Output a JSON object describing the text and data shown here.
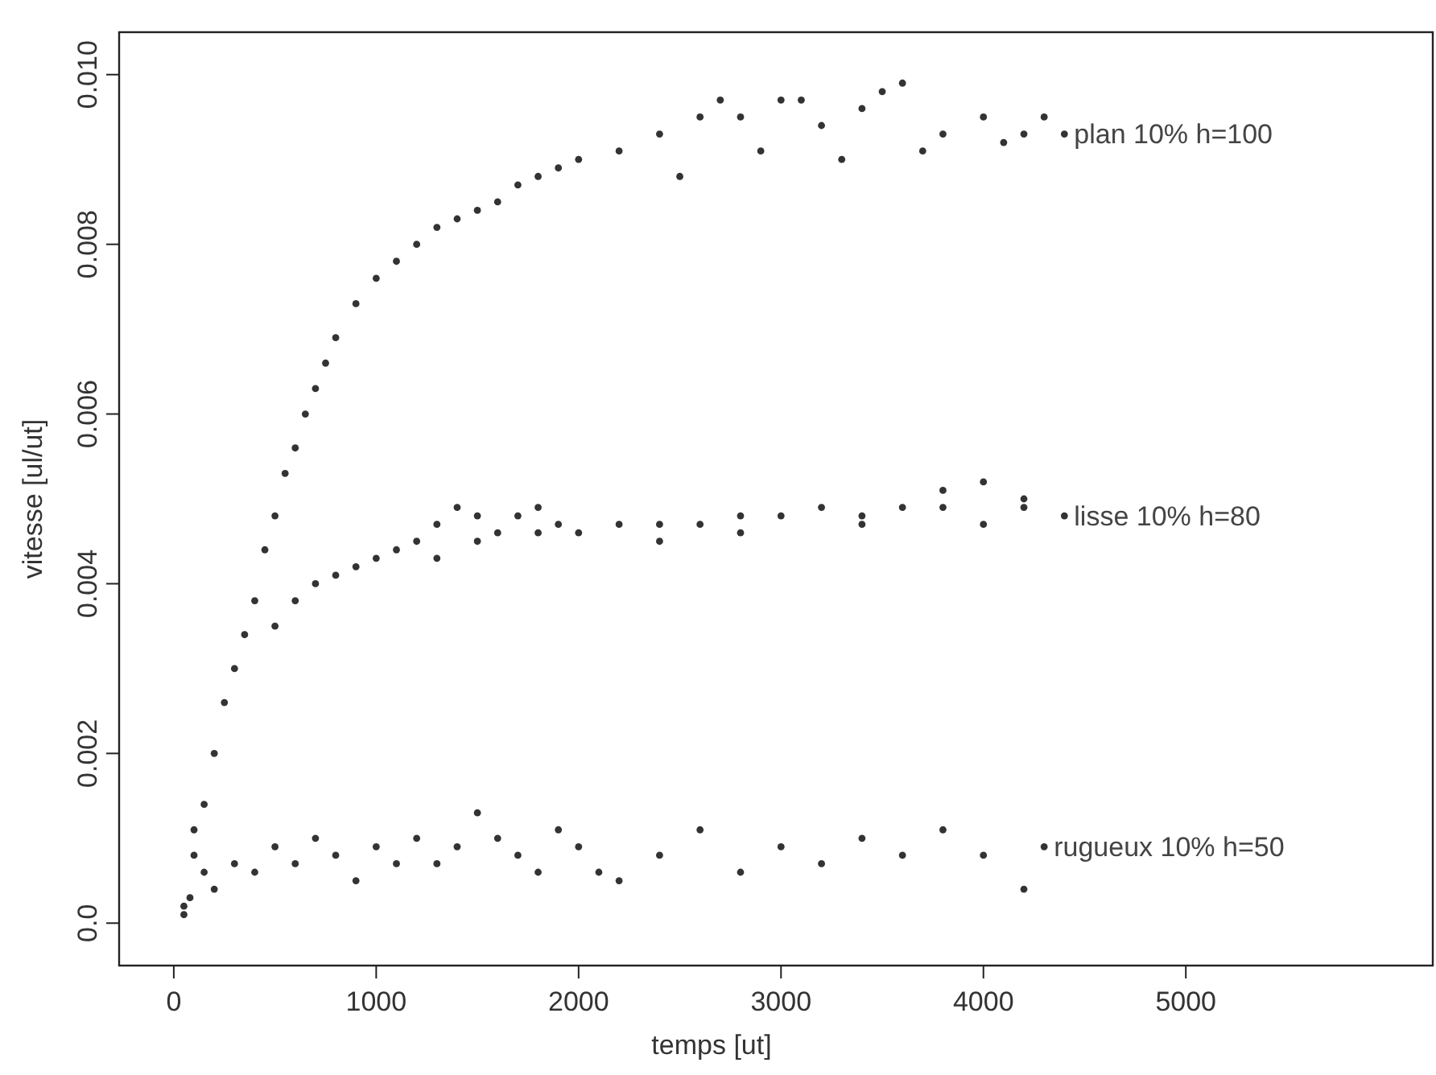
{
  "chart_data": {
    "type": "scatter",
    "xlabel": "temps [ut]",
    "ylabel": "vitesse [ul/ut]",
    "xlim": [
      -270,
      6220
    ],
    "xticks": [
      0,
      1000,
      2000,
      3000,
      4000,
      5000
    ],
    "ylim": [
      -0.0005,
      0.0105
    ],
    "yticks": [
      {
        "value": 0,
        "label": "0.0"
      },
      {
        "value": 0.002,
        "label": "0.002"
      },
      {
        "value": 0.004,
        "label": "0.004"
      },
      {
        "value": 0.006,
        "label": "0.006"
      },
      {
        "value": 0.008,
        "label": "0.008"
      },
      {
        "value": 0.01,
        "label": "0.010"
      }
    ],
    "grid": false,
    "legend": false,
    "marker": "circle",
    "series": [
      {
        "name": "plan 10% h=100",
        "color": "#333333",
        "x": [
          50,
          100,
          150,
          200,
          250,
          300,
          350,
          400,
          450,
          500,
          550,
          600,
          650,
          700,
          750,
          800,
          900,
          1000,
          1100,
          1200,
          1300,
          1400,
          1500,
          1600,
          1700,
          1800,
          1900,
          2000,
          2200,
          2400,
          2600,
          2700,
          2800,
          3000,
          3200,
          3400,
          3500,
          3600,
          3800,
          4000,
          4200,
          2500,
          2900,
          3100,
          3300,
          3700,
          4100,
          4300,
          4400
        ],
        "values": [
          0.0002,
          0.0008,
          0.0014,
          0.002,
          0.0026,
          0.003,
          0.0034,
          0.0038,
          0.0044,
          0.0048,
          0.0053,
          0.0056,
          0.006,
          0.0063,
          0.0066,
          0.0069,
          0.0073,
          0.0076,
          0.0078,
          0.008,
          0.0082,
          0.0083,
          0.0084,
          0.0085,
          0.0087,
          0.0088,
          0.0089,
          0.009,
          0.0091,
          0.0093,
          0.0095,
          0.0097,
          0.0095,
          0.0097,
          0.0094,
          0.0096,
          0.0098,
          0.0099,
          0.0093,
          0.0095,
          0.0093,
          0.0088,
          0.0091,
          0.0097,
          0.009,
          0.0091,
          0.0092,
          0.0095,
          0.0093
        ]
      },
      {
        "name": "lisse 10% h=80",
        "color": "#333333",
        "x": [
          500,
          600,
          700,
          800,
          900,
          1000,
          1100,
          1200,
          1300,
          1400,
          1500,
          1600,
          1700,
          1800,
          1900,
          2000,
          2200,
          2400,
          2600,
          2800,
          3000,
          3200,
          3400,
          3600,
          3800,
          4000,
          4200,
          1300,
          1500,
          1800,
          2400,
          2800,
          3400,
          3800,
          4000,
          4200,
          4400
        ],
        "values": [
          0.0035,
          0.0038,
          0.004,
          0.0041,
          0.0042,
          0.0043,
          0.0044,
          0.0045,
          0.0047,
          0.0049,
          0.0048,
          0.0046,
          0.0048,
          0.0049,
          0.0047,
          0.0046,
          0.0047,
          0.0045,
          0.0047,
          0.0046,
          0.0048,
          0.0049,
          0.0047,
          0.0049,
          0.0051,
          0.0052,
          0.0049,
          0.0043,
          0.0045,
          0.0046,
          0.0047,
          0.0048,
          0.0048,
          0.0049,
          0.0047,
          0.005,
          0.0048
        ]
      },
      {
        "name": "rugueux 10% h=50",
        "color": "#333333",
        "x": [
          50,
          80,
          100,
          150,
          200,
          300,
          400,
          500,
          600,
          700,
          800,
          900,
          1000,
          1100,
          1200,
          1300,
          1400,
          1500,
          1600,
          1700,
          1800,
          1900,
          2000,
          2100,
          2200,
          2400,
          2600,
          2800,
          3000,
          3200,
          3400,
          3600,
          3800,
          4000,
          4200,
          4300
        ],
        "values": [
          0.0001,
          0.0003,
          0.0011,
          0.0006,
          0.0004,
          0.0007,
          0.0006,
          0.0009,
          0.0007,
          0.001,
          0.0008,
          0.0005,
          0.0009,
          0.0007,
          0.001,
          0.0007,
          0.0009,
          0.0013,
          0.001,
          0.0008,
          0.0006,
          0.0011,
          0.0009,
          0.0006,
          0.0005,
          0.0008,
          0.0011,
          0.0006,
          0.0009,
          0.0007,
          0.001,
          0.0008,
          0.0011,
          0.0008,
          0.0004,
          0.0009
        ]
      }
    ]
  }
}
